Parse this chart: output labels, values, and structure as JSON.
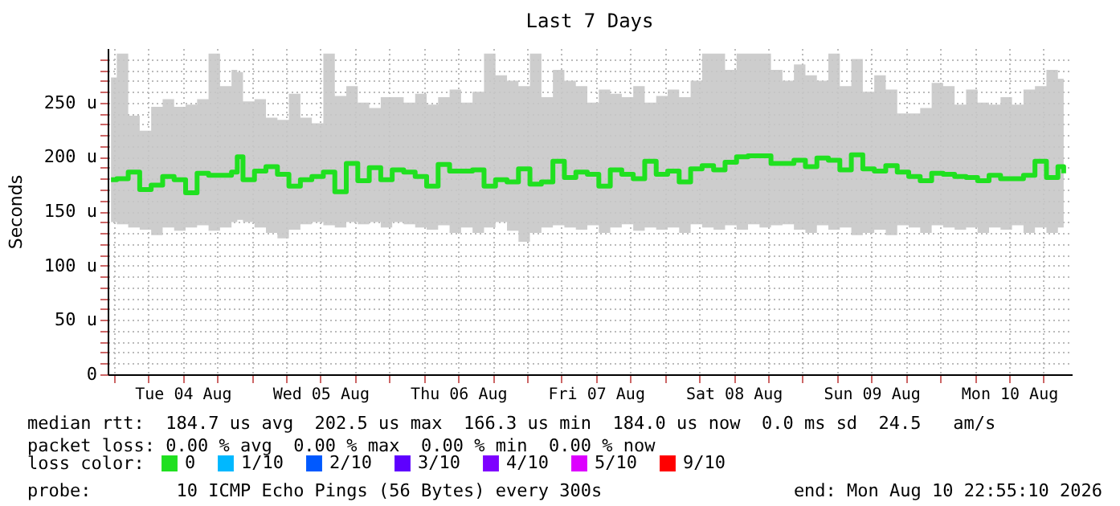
{
  "chart_data": {
    "type": "step",
    "title": "Last 7 Days",
    "ylabel": "Seconds",
    "xlim": [
      "2026-08-03T22:55",
      "2026-08-10T22:55"
    ],
    "xticks": [
      {
        "value": "2026-08-04T00:00",
        "label": null
      },
      {
        "value": "2026-08-04T06:00",
        "label": null
      },
      {
        "value": "2026-08-04T12:00",
        "label": "Tue 04 Aug"
      },
      {
        "value": "2026-08-04T18:00",
        "label": null
      },
      {
        "value": "2026-08-05T00:00",
        "label": null
      },
      {
        "value": "2026-08-05T06:00",
        "label": null
      },
      {
        "value": "2026-08-05T12:00",
        "label": "Wed 05 Aug"
      },
      {
        "value": "2026-08-05T18:00",
        "label": null
      },
      {
        "value": "2026-08-06T00:00",
        "label": null
      },
      {
        "value": "2026-08-06T06:00",
        "label": null
      },
      {
        "value": "2026-08-06T12:00",
        "label": "Thu 06 Aug"
      },
      {
        "value": "2026-08-06T18:00",
        "label": null
      },
      {
        "value": "2026-08-07T00:00",
        "label": null
      },
      {
        "value": "2026-08-07T06:00",
        "label": null
      },
      {
        "value": "2026-08-07T12:00",
        "label": "Fri 07 Aug"
      },
      {
        "value": "2026-08-07T18:00",
        "label": null
      },
      {
        "value": "2026-08-08T00:00",
        "label": null
      },
      {
        "value": "2026-08-08T06:00",
        "label": null
      },
      {
        "value": "2026-08-08T12:00",
        "label": "Sat 08 Aug"
      },
      {
        "value": "2026-08-08T18:00",
        "label": null
      },
      {
        "value": "2026-08-09T00:00",
        "label": null
      },
      {
        "value": "2026-08-09T06:00",
        "label": null
      },
      {
        "value": "2026-08-09T12:00",
        "label": "Sun 09 Aug"
      },
      {
        "value": "2026-08-09T18:00",
        "label": null
      },
      {
        "value": "2026-08-10T00:00",
        "label": null
      },
      {
        "value": "2026-08-10T06:00",
        "label": null
      },
      {
        "value": "2026-08-10T12:00",
        "label": "Mon 10 Aug"
      },
      {
        "value": "2026-08-10T18:00",
        "label": null
      }
    ],
    "ylim": [
      0,
      300
    ],
    "yticks": [
      0,
      {
        "value": 10,
        "label": null
      },
      {
        "value": 20,
        "label": null
      },
      {
        "value": 30,
        "label": null
      },
      {
        "value": 40,
        "label": null
      },
      {
        "value": 50,
        "label": "50 u"
      },
      {
        "value": 60,
        "label": null
      },
      {
        "value": 70,
        "label": null
      },
      {
        "value": 80,
        "label": null
      },
      {
        "value": 90,
        "label": null
      },
      {
        "value": 100,
        "label": "100 u"
      },
      {
        "value": 110,
        "label": null
      },
      {
        "value": 120,
        "label": null
      },
      {
        "value": 130,
        "label": null
      },
      {
        "value": 140,
        "label": null
      },
      {
        "value": 150,
        "label": "150 u"
      },
      {
        "value": 160,
        "label": null
      },
      {
        "value": 170,
        "label": null
      },
      {
        "value": 180,
        "label": null
      },
      {
        "value": 190,
        "label": null
      },
      {
        "value": 200,
        "label": "200 u"
      },
      {
        "value": 210,
        "label": null
      },
      {
        "value": 220,
        "label": null
      },
      {
        "value": 230,
        "label": null
      },
      {
        "value": 240,
        "label": null
      },
      {
        "value": 250,
        "label": "250 u"
      },
      {
        "value": 260,
        "label": null
      },
      {
        "value": 270,
        "label": null
      },
      {
        "value": 280,
        "label": null
      },
      {
        "value": 290,
        "label": null
      }
    ],
    "grid": true,
    "legend": "bottom left",
    "legend_title": "loss color:",
    "marker": "none",
    "x": [
      "2026-08-03T23:30",
      "2026-08-04T00:30",
      "2026-08-04T02:30",
      "2026-08-04T04:30",
      "2026-08-04T06:30",
      "2026-08-04T08:30",
      "2026-08-04T10:30",
      "2026-08-04T12:30",
      "2026-08-04T14:30",
      "2026-08-04T16:30",
      "2026-08-04T18:30",
      "2026-08-04T20:30",
      "2026-08-04T21:30",
      "2026-08-04T22:30",
      "2026-08-05T00:30",
      "2026-08-05T02:30",
      "2026-08-05T04:30",
      "2026-08-05T06:30",
      "2026-08-05T08:30",
      "2026-08-05T10:30",
      "2026-08-05T12:30",
      "2026-08-05T14:30",
      "2026-08-05T16:30",
      "2026-08-05T18:30",
      "2026-08-05T20:30",
      "2026-08-05T22:30",
      "2026-08-06T00:30",
      "2026-08-06T02:30",
      "2026-08-06T04:30",
      "2026-08-06T06:30",
      "2026-08-06T08:30",
      "2026-08-06T10:30",
      "2026-08-06T12:30",
      "2026-08-06T14:30",
      "2026-08-06T16:30",
      "2026-08-06T18:30",
      "2026-08-06T20:30",
      "2026-08-06T22:30",
      "2026-08-07T00:30",
      "2026-08-07T02:30",
      "2026-08-07T04:30",
      "2026-08-07T06:30",
      "2026-08-07T08:30",
      "2026-08-07T10:30",
      "2026-08-07T12:30",
      "2026-08-07T14:30",
      "2026-08-07T16:30",
      "2026-08-07T18:30",
      "2026-08-07T20:30",
      "2026-08-07T22:30",
      "2026-08-08T00:30",
      "2026-08-08T02:30",
      "2026-08-08T04:30",
      "2026-08-08T06:30",
      "2026-08-08T08:30",
      "2026-08-08T10:30",
      "2026-08-08T12:30",
      "2026-08-08T14:30",
      "2026-08-08T16:30",
      "2026-08-08T18:30",
      "2026-08-08T20:30",
      "2026-08-08T22:30",
      "2026-08-09T00:30",
      "2026-08-09T02:30",
      "2026-08-09T04:30",
      "2026-08-09T06:30",
      "2026-08-09T08:30",
      "2026-08-09T10:30",
      "2026-08-09T12:30",
      "2026-08-09T14:30",
      "2026-08-09T16:30",
      "2026-08-09T18:30",
      "2026-08-09T20:30",
      "2026-08-09T22:30",
      "2026-08-10T00:30",
      "2026-08-10T02:30",
      "2026-08-10T04:30",
      "2026-08-10T06:30",
      "2026-08-10T08:30",
      "2026-08-10T10:30",
      "2026-08-10T12:30",
      "2026-08-10T14:30",
      "2026-08-10T16:30",
      "2026-08-10T18:30",
      "2026-08-10T20:30",
      "2026-08-10T21:30"
    ],
    "series": [
      {
        "name": "0",
        "color": "#20e020",
        "values": [
          179,
          180,
          186,
          170,
          174,
          182,
          179,
          167,
          185,
          183,
          183,
          186,
          200,
          179,
          187,
          191,
          184,
          173,
          179,
          182,
          186,
          168,
          194,
          178,
          190,
          179,
          188,
          186,
          182,
          173,
          193,
          187,
          187,
          188,
          173,
          179,
          177,
          189,
          175,
          177,
          196,
          181,
          186,
          184,
          173,
          188,
          184,
          180,
          196,
          184,
          187,
          177,
          189,
          192,
          188,
          195,
          200,
          201,
          201,
          194,
          194,
          197,
          191,
          199,
          197,
          188,
          202,
          189,
          187,
          192,
          186,
          182,
          178,
          185,
          184,
          182,
          181,
          178,
          183,
          180,
          180,
          183,
          196,
          181,
          191,
          185
        ],
        "lower": [
          140,
          138,
          135,
          133,
          128,
          135,
          132,
          135,
          137,
          132,
          135,
          140,
          142,
          140,
          135,
          130,
          125,
          133,
          138,
          140,
          137,
          135,
          140,
          138,
          140,
          135,
          140,
          138,
          135,
          133,
          137,
          130,
          135,
          130,
          135,
          140,
          132,
          122,
          130,
          135,
          137,
          135,
          133,
          137,
          130,
          135,
          138,
          132,
          135,
          133,
          135,
          130,
          138,
          135,
          133,
          137,
          133,
          138,
          135,
          137,
          138,
          133,
          130,
          137,
          133,
          135,
          128,
          130,
          133,
          128,
          137,
          135,
          130,
          137,
          135,
          133,
          135,
          130,
          135,
          133,
          137,
          130,
          135,
          130,
          135,
          137
        ],
        "upper": [
          273,
          295,
          238,
          224,
          246,
          253,
          246,
          248,
          253,
          295,
          265,
          280,
          278,
          251,
          253,
          236,
          234,
          258,
          236,
          231,
          295,
          256,
          265,
          250,
          245,
          255,
          255,
          250,
          258,
          248,
          255,
          262,
          250,
          260,
          295,
          275,
          270,
          265,
          295,
          255,
          280,
          270,
          265,
          250,
          262,
          258,
          255,
          265,
          250,
          256,
          262,
          255,
          270,
          295,
          295,
          280,
          295,
          295,
          295,
          280,
          270,
          285,
          275,
          270,
          295,
          265,
          290,
          260,
          275,
          262,
          240,
          240,
          245,
          268,
          265,
          248,
          262,
          250,
          248,
          255,
          248,
          262,
          265,
          280,
          272,
          260
        ]
      },
      {
        "name": "1/10",
        "color": "#00b8ff",
        "values": [
          null,
          null,
          null,
          null,
          null,
          null,
          null,
          null,
          null,
          null,
          null,
          null,
          null,
          null,
          null,
          null,
          null,
          null,
          null,
          null,
          null,
          null,
          null,
          null,
          null,
          null,
          null,
          null,
          null,
          null,
          null,
          null,
          null,
          null,
          null,
          null,
          null,
          null,
          null,
          null,
          null,
          null,
          null,
          null,
          null,
          null,
          null,
          null,
          null,
          null,
          null,
          null,
          null,
          null,
          null,
          null,
          null,
          null,
          null,
          null,
          null,
          null,
          null,
          null,
          null,
          null,
          null,
          null,
          null,
          null,
          null,
          null,
          null,
          null,
          null,
          null,
          null,
          null,
          null,
          null,
          null,
          null,
          null,
          null,
          null,
          null
        ]
      },
      {
        "name": "2/10",
        "color": "#0059ff",
        "values": [
          null,
          null,
          null,
          null,
          null,
          null,
          null,
          null,
          null,
          null,
          null,
          null,
          null,
          null,
          null,
          null,
          null,
          null,
          null,
          null,
          null,
          null,
          null,
          null,
          null,
          null,
          null,
          null,
          null,
          null,
          null,
          null,
          null,
          null,
          null,
          null,
          null,
          null,
          null,
          null,
          null,
          null,
          null,
          null,
          null,
          null,
          null,
          null,
          null,
          null,
          null,
          null,
          null,
          null,
          null,
          null,
          null,
          null,
          null,
          null,
          null,
          null,
          null,
          null,
          null,
          null,
          null,
          null,
          null,
          null,
          null,
          null,
          null,
          null,
          null,
          null,
          null,
          null,
          null,
          null,
          null,
          null,
          null,
          null,
          null,
          null
        ]
      },
      {
        "name": "3/10",
        "color": "#5e00ff",
        "values": [
          null,
          null,
          null,
          null,
          null,
          null,
          null,
          null,
          null,
          null,
          null,
          null,
          null,
          null,
          null,
          null,
          null,
          null,
          null,
          null,
          null,
          null,
          null,
          null,
          null,
          null,
          null,
          null,
          null,
          null,
          null,
          null,
          null,
          null,
          null,
          null,
          null,
          null,
          null,
          null,
          null,
          null,
          null,
          null,
          null,
          null,
          null,
          null,
          null,
          null,
          null,
          null,
          null,
          null,
          null,
          null,
          null,
          null,
          null,
          null,
          null,
          null,
          null,
          null,
          null,
          null,
          null,
          null,
          null,
          null,
          null,
          null,
          null,
          null,
          null,
          null,
          null,
          null,
          null,
          null,
          null,
          null,
          null,
          null,
          null,
          null
        ]
      },
      {
        "name": "4/10",
        "color": "#7e00ff",
        "values": [
          null,
          null,
          null,
          null,
          null,
          null,
          null,
          null,
          null,
          null,
          null,
          null,
          null,
          null,
          null,
          null,
          null,
          null,
          null,
          null,
          null,
          null,
          null,
          null,
          null,
          null,
          null,
          null,
          null,
          null,
          null,
          null,
          null,
          null,
          null,
          null,
          null,
          null,
          null,
          null,
          null,
          null,
          null,
          null,
          null,
          null,
          null,
          null,
          null,
          null,
          null,
          null,
          null,
          null,
          null,
          null,
          null,
          null,
          null,
          null,
          null,
          null,
          null,
          null,
          null,
          null,
          null,
          null,
          null,
          null,
          null,
          null,
          null,
          null,
          null,
          null,
          null,
          null,
          null,
          null,
          null,
          null,
          null,
          null,
          null,
          null
        ]
      },
      {
        "name": "5/10",
        "color": "#dd00ff",
        "values": [
          null,
          null,
          null,
          null,
          null,
          null,
          null,
          null,
          null,
          null,
          null,
          null,
          null,
          null,
          null,
          null,
          null,
          null,
          null,
          null,
          null,
          null,
          null,
          null,
          null,
          null,
          null,
          null,
          null,
          null,
          null,
          null,
          null,
          null,
          null,
          null,
          null,
          null,
          null,
          null,
          null,
          null,
          null,
          null,
          null,
          null,
          null,
          null,
          null,
          null,
          null,
          null,
          null,
          null,
          null,
          null,
          null,
          null,
          null,
          null,
          null,
          null,
          null,
          null,
          null,
          null,
          null,
          null,
          null,
          null,
          null,
          null,
          null,
          null,
          null,
          null,
          null,
          null,
          null,
          null,
          null,
          null,
          null,
          null,
          null,
          null
        ]
      },
      {
        "name": "9/10",
        "color": "#ff0000",
        "values": [
          null,
          null,
          null,
          null,
          null,
          null,
          null,
          null,
          null,
          null,
          null,
          null,
          null,
          null,
          null,
          null,
          null,
          null,
          null,
          null,
          null,
          null,
          null,
          null,
          null,
          null,
          null,
          null,
          null,
          null,
          null,
          null,
          null,
          null,
          null,
          null,
          null,
          null,
          null,
          null,
          null,
          null,
          null,
          null,
          null,
          null,
          null,
          null,
          null,
          null,
          null,
          null,
          null,
          null,
          null,
          null,
          null,
          null,
          null,
          null,
          null,
          null,
          null,
          null,
          null,
          null,
          null,
          null,
          null,
          null,
          null,
          null,
          null,
          null,
          null,
          null,
          null,
          null,
          null,
          null,
          null,
          null,
          null,
          null,
          null,
          null
        ]
      }
    ],
    "annotations": [
      "median rtt:  184.7 us avg  202.5 us max  166.3 us min  184.0 us now  0.0 ms sd  24.5   am/s",
      "packet loss: 0.00 % avg  0.00 % max  0.00 % min  0.00 % now",
      "probe:        10 ICMP Echo Pings (56 Bytes) every 300s",
      "end: Mon Aug 10 22:55:10 2026"
    ]
  }
}
